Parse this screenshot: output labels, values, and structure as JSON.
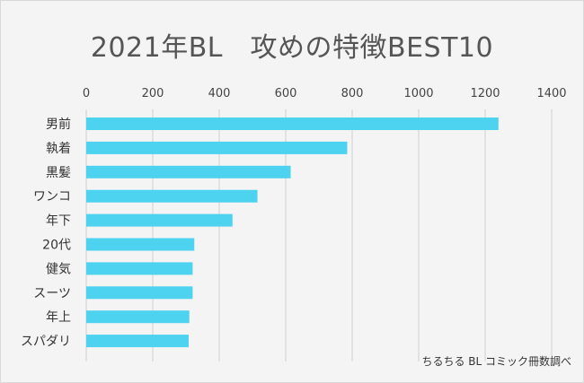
{
  "chart_data": {
    "type": "bar",
    "orientation": "horizontal",
    "title": "2021年BL　攻めの特徴BEST10",
    "categories": [
      "男前",
      "執着",
      "黒髪",
      "ワンコ",
      "年下",
      "20代",
      "健気",
      "スーツ",
      "年上",
      "スパダリ"
    ],
    "values": [
      1240,
      785,
      615,
      515,
      440,
      325,
      320,
      320,
      310,
      308
    ],
    "xlim": [
      0,
      1400
    ],
    "xticks": [
      0,
      200,
      400,
      600,
      800,
      1000,
      1200,
      1400
    ],
    "x_axis_position": "top",
    "grid": true,
    "legend": "none",
    "bar_color": "#4dd2f0",
    "grid_color": "#d0d0d0"
  },
  "source_note": "ちるちる BL コミック冊数調べ"
}
